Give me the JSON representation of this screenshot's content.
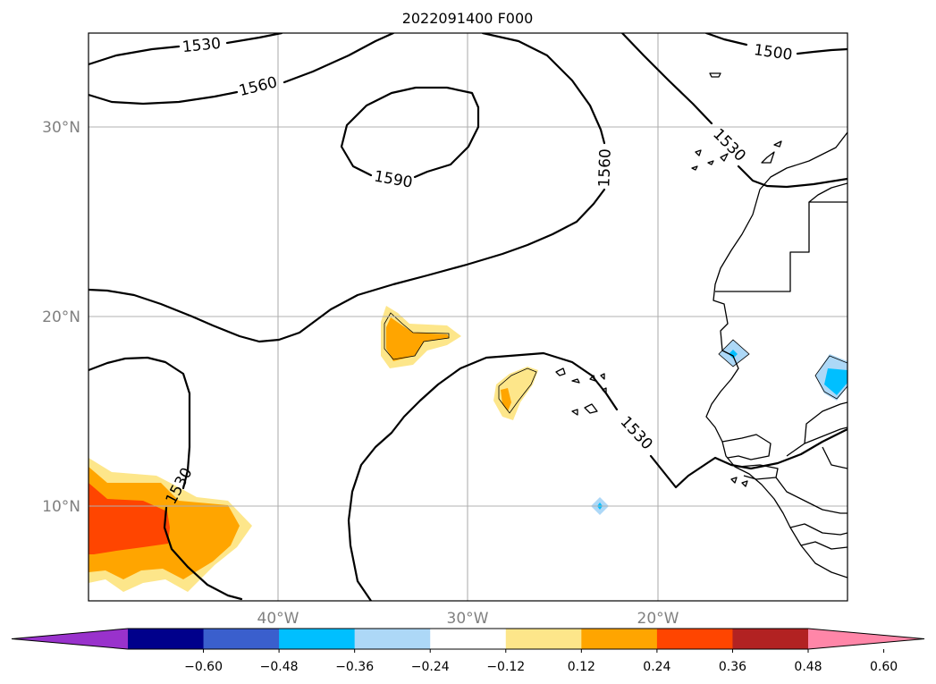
{
  "title": "2022091400 F000",
  "lat_labels": [
    "30°N",
    "20°N",
    "10°N"
  ],
  "lon_labels": [
    "40°W",
    "30°W",
    "20°W"
  ],
  "contour_labels": [
    "1530",
    "1560",
    "1590",
    "1560",
    "1500",
    "1530",
    "1530",
    "1530"
  ],
  "colorbar": {
    "ticks": [
      "−0.60",
      "−0.48",
      "−0.36",
      "−0.24",
      "−0.12",
      "0.12",
      "0.24",
      "0.36",
      "0.48",
      "0.60"
    ],
    "colors": [
      "#9932cc",
      "#00008b",
      "#3a5fcd",
      "#00bfff",
      "#add8f7",
      "#ffffff",
      "#fde68a",
      "#ffa500",
      "#ff4500",
      "#b22222",
      "#ff86a8"
    ]
  },
  "colors": {
    "light_yellow": "#fde68a",
    "orange": "#ffa500",
    "red_orange": "#ff4500",
    "light_blue": "#add8f7",
    "deep_sky_blue": "#00bfff"
  }
}
